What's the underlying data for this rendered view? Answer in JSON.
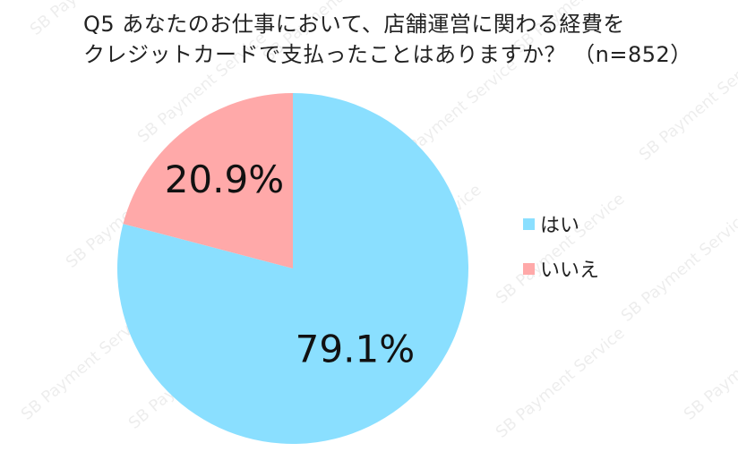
{
  "title_lines": [
    "Q5 あなたのお仕事において、店舗運営に関わる経費を",
    "クレジットカードで支払ったことはありますか？ （n=852）"
  ],
  "watermark_text": "SB Payment Service",
  "chart_data": {
    "type": "pie",
    "title": "Q5 あなたのお仕事において、店舗運営に関わる経費をクレジットカードで支払ったことはありますか？ （n=852）",
    "categories": [
      "はい",
      "いいえ"
    ],
    "values": [
      79.1,
      20.9
    ],
    "data_labels": [
      "79.1%",
      "20.9%"
    ],
    "colors": [
      "#8ADFFF",
      "#FFA9A9"
    ],
    "start": "12 o'clock, clockwise",
    "legend_position": "right"
  }
}
